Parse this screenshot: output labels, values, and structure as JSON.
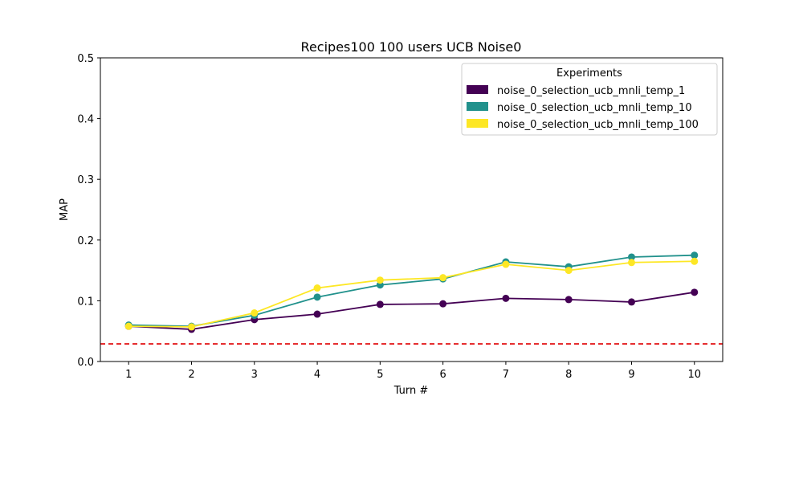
{
  "chart_data": {
    "type": "line",
    "title": "Recipes100 100 users UCB Noise0",
    "xlabel": "Turn #",
    "ylabel": "MAP",
    "x": [
      1,
      2,
      3,
      4,
      5,
      6,
      7,
      8,
      9,
      10
    ],
    "xlim": [
      0.55,
      10.45
    ],
    "ylim": [
      0.0,
      0.5
    ],
    "yticks": [
      0.0,
      0.1,
      0.2,
      0.3,
      0.4,
      0.5
    ],
    "ytick_labels": [
      "0.0",
      "0.1",
      "0.2",
      "0.3",
      "0.4",
      "0.5"
    ],
    "xtick_labels": [
      "1",
      "2",
      "3",
      "4",
      "5",
      "6",
      "7",
      "8",
      "9",
      "10"
    ],
    "grid": false,
    "legend_title": "Experiments",
    "legend_position": "top-right",
    "series": [
      {
        "name": "noise_0_selection_ucb_mnli_temp_1",
        "color": "#440154",
        "values": [
          0.058,
          0.053,
          0.069,
          0.078,
          0.094,
          0.095,
          0.104,
          0.102,
          0.098,
          0.114
        ]
      },
      {
        "name": "noise_0_selection_ucb_mnli_temp_10",
        "color": "#21918c",
        "values": [
          0.06,
          0.058,
          0.076,
          0.106,
          0.126,
          0.136,
          0.164,
          0.156,
          0.172,
          0.175
        ]
      },
      {
        "name": "noise_0_selection_ucb_mnli_temp_100",
        "color": "#fde725",
        "values": [
          0.058,
          0.057,
          0.08,
          0.121,
          0.134,
          0.138,
          0.16,
          0.15,
          0.163,
          0.165
        ]
      }
    ],
    "reference_line": {
      "value": 0.029,
      "color": "#e31a1c",
      "style": "dashed"
    }
  }
}
